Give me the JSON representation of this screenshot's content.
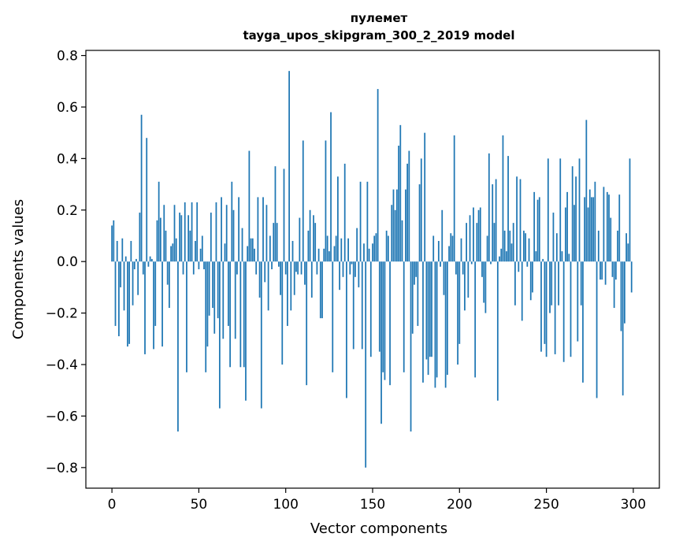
{
  "chart_data": {
    "type": "bar",
    "title_line1": "пулемет",
    "title_line2": "tayga_upos_skipgram_300_2_2019 model",
    "xlabel": "Vector components",
    "ylabel": "Components values",
    "xlim": [
      -15,
      315
    ],
    "ylim": [
      -0.88,
      0.82
    ],
    "xticks": [
      0,
      50,
      100,
      150,
      200,
      250,
      300
    ],
    "xtick_labels": [
      "0",
      "50",
      "100",
      "150",
      "200",
      "250",
      "300"
    ],
    "yticks": [
      -0.8,
      -0.6,
      -0.4,
      -0.2,
      0.0,
      0.2,
      0.4,
      0.6,
      0.8
    ],
    "ytick_labels": [
      "−0.8",
      "−0.6",
      "−0.4",
      "−0.2",
      "0.0",
      "0.2",
      "0.4",
      "0.6",
      "0.8"
    ],
    "bar_color": "#1f77b4",
    "values": [
      0.14,
      0.16,
      -0.25,
      0.08,
      -0.29,
      -0.1,
      0.09,
      -0.19,
      0.02,
      -0.33,
      -0.32,
      0.08,
      -0.17,
      -0.03,
      0.01,
      -0.13,
      0.19,
      0.57,
      -0.05,
      -0.36,
      0.48,
      -0.02,
      0.02,
      0.01,
      -0.34,
      -0.25,
      0.16,
      0.31,
      0.17,
      -0.33,
      0.22,
      0.12,
      -0.09,
      -0.18,
      0.06,
      0.07,
      0.22,
      0.09,
      -0.66,
      0.19,
      0.18,
      -0.05,
      0.23,
      -0.43,
      0.18,
      0.12,
      0.23,
      -0.05,
      0.08,
      0.23,
      -0.03,
      0.05,
      0.1,
      -0.03,
      -0.43,
      -0.33,
      -0.21,
      0.19,
      -0.18,
      -0.28,
      0.23,
      -0.22,
      -0.57,
      0.25,
      -0.3,
      0.07,
      0.22,
      -0.25,
      -0.41,
      0.31,
      0.2,
      -0.3,
      -0.05,
      0.25,
      -0.41,
      0.13,
      -0.41,
      -0.54,
      0.06,
      0.43,
      0.09,
      0.09,
      0.05,
      -0.05,
      0.25,
      -0.14,
      -0.57,
      0.25,
      -0.08,
      0.22,
      -0.19,
      0.1,
      -0.03,
      0.15,
      0.37,
      0.15,
      -0.02,
      -0.13,
      -0.4,
      0.36,
      -0.05,
      -0.25,
      0.74,
      -0.19,
      0.08,
      -0.13,
      -0.04,
      -0.05,
      0.17,
      -0.05,
      0.47,
      -0.09,
      -0.48,
      0.12,
      0.2,
      -0.14,
      0.18,
      0.15,
      -0.05,
      0.05,
      -0.22,
      -0.22,
      0.05,
      0.47,
      0.1,
      0.04,
      0.58,
      -0.43,
      0.06,
      0.1,
      0.33,
      -0.11,
      0.09,
      -0.06,
      0.38,
      -0.53,
      0.09,
      -0.05,
      -0.01,
      -0.34,
      -0.06,
      0.13,
      -0.1,
      0.31,
      -0.34,
      0.07,
      -0.8,
      0.31,
      0.05,
      -0.37,
      0.07,
      0.1,
      0.11,
      0.67,
      -0.35,
      -0.63,
      -0.43,
      -0.46,
      0.12,
      0.1,
      -0.48,
      0.22,
      0.28,
      0.2,
      0.28,
      0.45,
      0.53,
      0.16,
      -0.43,
      0.28,
      0.38,
      0.43,
      -0.66,
      -0.28,
      -0.09,
      -0.06,
      -0.25,
      0.3,
      0.4,
      -0.47,
      0.5,
      -0.38,
      -0.44,
      -0.37,
      -0.37,
      0.1,
      -0.49,
      -0.45,
      0.08,
      -0.02,
      0.2,
      -0.13,
      -0.49,
      -0.44,
      0.06,
      0.11,
      0.1,
      0.49,
      -0.05,
      -0.4,
      -0.32,
      0.09,
      -0.05,
      -0.19,
      0.15,
      -0.14,
      0.18,
      -0.01,
      0.21,
      -0.45,
      0.15,
      0.2,
      0.21,
      -0.06,
      -0.16,
      -0.2,
      0.1,
      0.42,
      -0.01,
      0.3,
      0.15,
      0.32,
      -0.54,
      0.02,
      0.05,
      0.49,
      0.12,
      0.04,
      0.41,
      0.12,
      0.07,
      0.15,
      -0.17,
      0.33,
      -0.04,
      0.32,
      -0.23,
      0.12,
      0.11,
      -0.02,
      0.09,
      -0.15,
      -0.12,
      0.27,
      0.04,
      0.24,
      0.25,
      -0.35,
      0.01,
      -0.32,
      -0.37,
      0.4,
      -0.2,
      -0.17,
      0.19,
      -0.36,
      0.11,
      -0.17,
      0.4,
      0.04,
      -0.39,
      0.21,
      0.27,
      0.03,
      -0.37,
      0.37,
      0.22,
      0.33,
      -0.31,
      0.4,
      -0.17,
      -0.47,
      0.25,
      0.55,
      0.21,
      0.28,
      0.25,
      0.25,
      0.31,
      -0.53,
      0.12,
      -0.07,
      -0.07,
      0.29,
      -0.09,
      0.27,
      0.26,
      0.17,
      -0.06,
      -0.18,
      -0.07,
      0.12,
      0.26,
      -0.27,
      -0.52,
      -0.24,
      0.11,
      0.07,
      0.4,
      -0.12
    ]
  }
}
